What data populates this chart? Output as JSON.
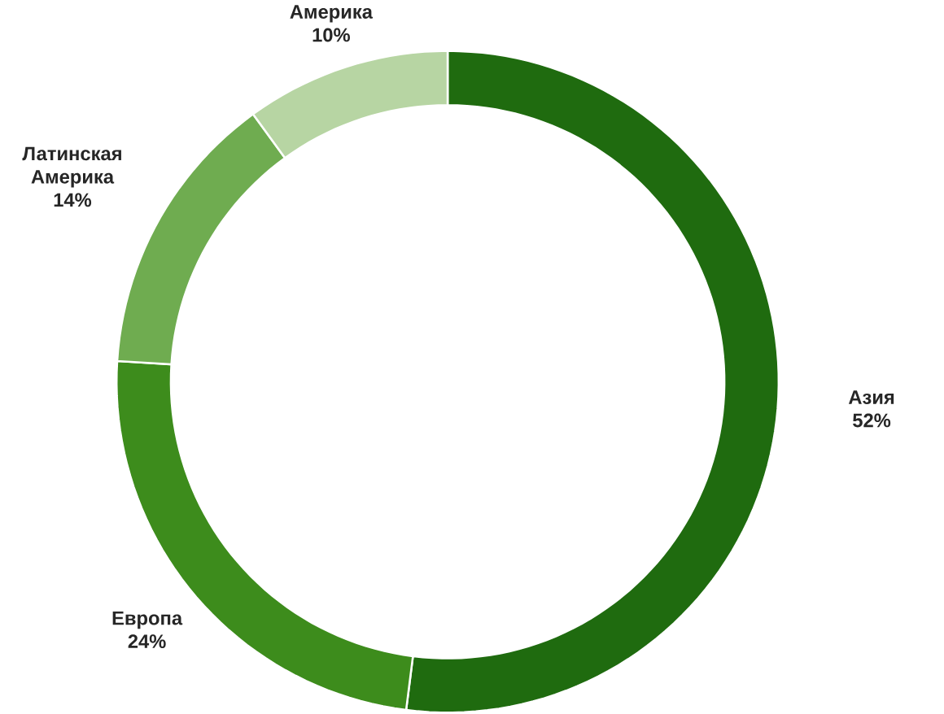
{
  "chart_data": {
    "type": "donut",
    "categories": [
      "Азия",
      "Европа",
      "Латинская Америка",
      "Америка"
    ],
    "values": [
      52,
      24,
      14,
      10
    ],
    "colors": [
      "#1f6b0f",
      "#3d8c1c",
      "#6fac50",
      "#b7d5a3"
    ],
    "value_labels": [
      "52%",
      "24%",
      "14%",
      "10%"
    ]
  }
}
